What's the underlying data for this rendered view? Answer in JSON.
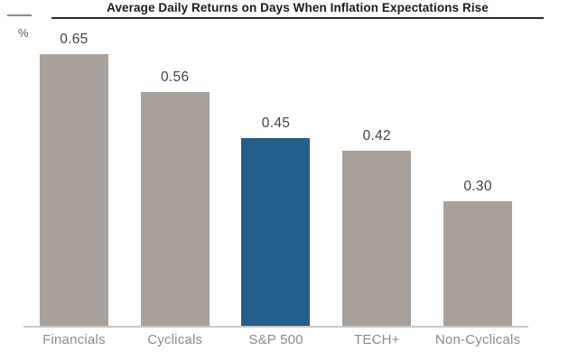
{
  "header": {
    "title": "Average Daily Returns on Days When Inflation Expectations Rise",
    "y_axis_unit": "%"
  },
  "chart_data": {
    "type": "bar",
    "title": "Average Daily Returns on Days When Inflation Expectations Rise",
    "ylabel": "%",
    "xlabel": "",
    "categories": [
      "Financials",
      "Cyclicals",
      "S&P 500",
      "TECH+",
      "Non-Cyclicals"
    ],
    "values": [
      0.65,
      0.56,
      0.45,
      0.42,
      0.3
    ],
    "value_labels": [
      "0.65",
      "0.56",
      "0.45",
      "0.42",
      "0.30"
    ],
    "highlight_index": 2,
    "ylim": [
      0,
      0.78
    ],
    "grid": false,
    "legend": false,
    "colors": {
      "bar_default": "#a8a19b",
      "bar_highlight": "#235e8c",
      "value_label": "#434343",
      "category_label": "#8d8d8d",
      "axis_line": "#c9c9c9",
      "title_underline": "#2b2b2b"
    }
  }
}
